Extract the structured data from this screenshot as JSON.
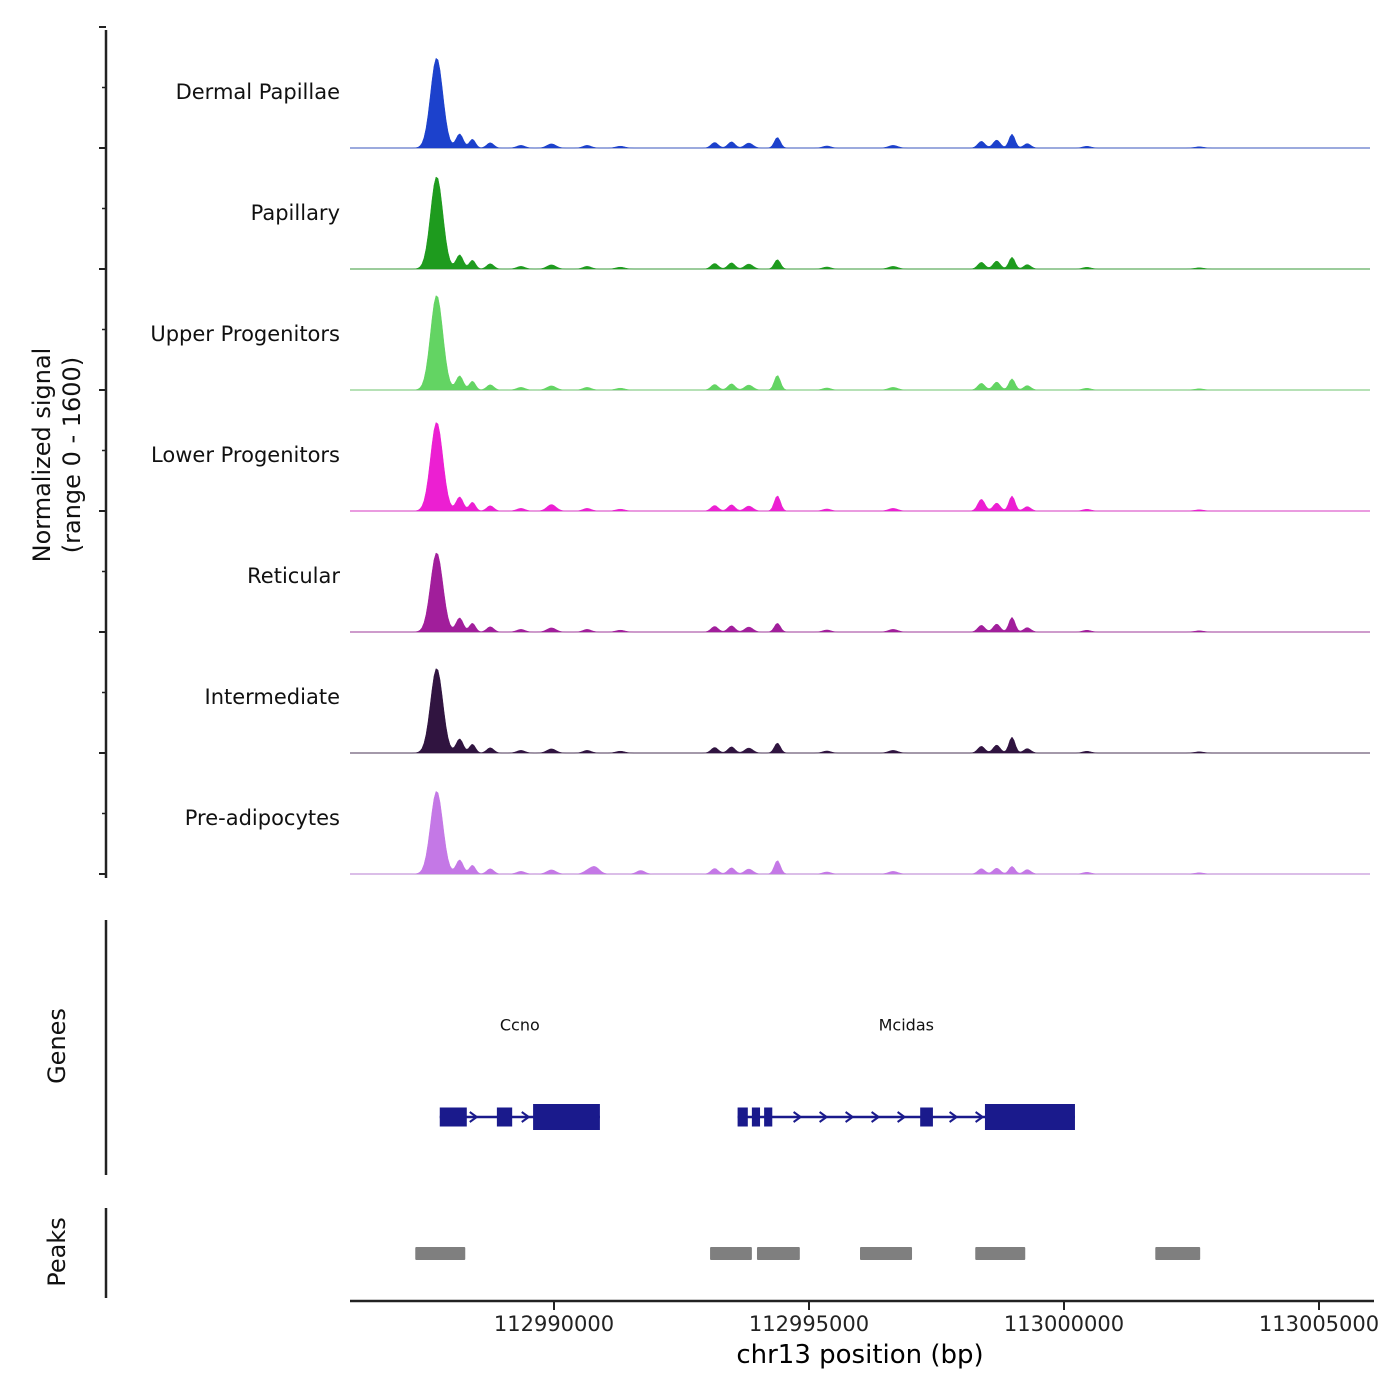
{
  "y_axis": {
    "label_line1": "Normalized signal",
    "label_line2": "(range 0 - 1600)",
    "range": [
      0,
      1600
    ]
  },
  "x_axis": {
    "label": "chr13 position (bp)",
    "chromosome": "chr13",
    "min": 112986000,
    "max": 113006000,
    "ticks": [
      {
        "pos": 112990000,
        "label": "112990000"
      },
      {
        "pos": 112995000,
        "label": "112995000"
      },
      {
        "pos": 113000000,
        "label": "113000000"
      },
      {
        "pos": 113005000,
        "label": "113005000"
      }
    ]
  },
  "sections": {
    "genes": "Genes",
    "peaks": "Peaks"
  },
  "colors": {
    "gene": "#1a1a8c",
    "peak_region": "#7f7f7f",
    "baseline": "#909090",
    "axis": "#222222"
  },
  "chart_data": {
    "type": "area",
    "description": "Genome browser signal tracks, normalized signal range 0-1600, chr13 112986000-113006000 bp. Peaks given as [center_bp, sigma_bp, height].",
    "tracks": [
      {
        "name": "Dermal Papillae",
        "color": "#1c41cc",
        "peaks": [
          [
            112987700,
            120,
            1520
          ],
          [
            112988150,
            70,
            240
          ],
          [
            112988400,
            60,
            150
          ],
          [
            112988750,
            70,
            90
          ],
          [
            112989350,
            80,
            45
          ],
          [
            112989950,
            90,
            70
          ],
          [
            112990650,
            80,
            45
          ],
          [
            112991300,
            90,
            30
          ],
          [
            112993150,
            70,
            95
          ],
          [
            112993480,
            70,
            105
          ],
          [
            112993820,
            80,
            85
          ],
          [
            112994380,
            60,
            180
          ],
          [
            112995350,
            80,
            35
          ],
          [
            112996650,
            90,
            45
          ],
          [
            112998380,
            70,
            115
          ],
          [
            112998680,
            70,
            135
          ],
          [
            112998980,
            60,
            235
          ],
          [
            112999280,
            70,
            75
          ],
          [
            113000450,
            80,
            30
          ],
          [
            113002650,
            90,
            20
          ]
        ]
      },
      {
        "name": "Papillary",
        "color": "#1e9b1e",
        "peaks": [
          [
            112987700,
            120,
            1560
          ],
          [
            112988150,
            70,
            240
          ],
          [
            112988400,
            60,
            150
          ],
          [
            112988750,
            70,
            90
          ],
          [
            112989350,
            80,
            45
          ],
          [
            112989950,
            90,
            70
          ],
          [
            112990650,
            80,
            45
          ],
          [
            112991300,
            90,
            30
          ],
          [
            112993150,
            70,
            95
          ],
          [
            112993480,
            70,
            105
          ],
          [
            112993820,
            80,
            85
          ],
          [
            112994380,
            60,
            160
          ],
          [
            112995350,
            80,
            35
          ],
          [
            112996650,
            90,
            45
          ],
          [
            112998380,
            70,
            115
          ],
          [
            112998680,
            70,
            135
          ],
          [
            112998980,
            60,
            200
          ],
          [
            112999280,
            70,
            75
          ],
          [
            113000450,
            80,
            30
          ],
          [
            113002650,
            90,
            20
          ]
        ]
      },
      {
        "name": "Upper Progenitors",
        "color": "#63d463",
        "peaks": [
          [
            112987700,
            120,
            1600
          ],
          [
            112988150,
            70,
            240
          ],
          [
            112988400,
            60,
            150
          ],
          [
            112988750,
            70,
            90
          ],
          [
            112989350,
            80,
            45
          ],
          [
            112989950,
            90,
            70
          ],
          [
            112990650,
            80,
            45
          ],
          [
            112991300,
            90,
            30
          ],
          [
            112993150,
            70,
            95
          ],
          [
            112993480,
            70,
            105
          ],
          [
            112993820,
            80,
            85
          ],
          [
            112994380,
            60,
            250
          ],
          [
            112995350,
            80,
            35
          ],
          [
            112996650,
            90,
            45
          ],
          [
            112998380,
            70,
            115
          ],
          [
            112998680,
            70,
            135
          ],
          [
            112998980,
            60,
            190
          ],
          [
            112999280,
            70,
            75
          ],
          [
            113000450,
            80,
            30
          ],
          [
            113002650,
            90,
            20
          ]
        ]
      },
      {
        "name": "Lower Progenitors",
        "color": "#ec1fd2",
        "peaks": [
          [
            112987700,
            120,
            1500
          ],
          [
            112988150,
            70,
            240
          ],
          [
            112988400,
            60,
            150
          ],
          [
            112988750,
            70,
            90
          ],
          [
            112989350,
            80,
            45
          ],
          [
            112989950,
            90,
            110
          ],
          [
            112990650,
            80,
            45
          ],
          [
            112991300,
            90,
            30
          ],
          [
            112993150,
            70,
            95
          ],
          [
            112993480,
            70,
            105
          ],
          [
            112993820,
            80,
            85
          ],
          [
            112994380,
            60,
            260
          ],
          [
            112995350,
            80,
            35
          ],
          [
            112996650,
            90,
            45
          ],
          [
            112998380,
            70,
            200
          ],
          [
            112998680,
            70,
            135
          ],
          [
            112998980,
            60,
            255
          ],
          [
            112999280,
            70,
            75
          ],
          [
            113000450,
            80,
            30
          ],
          [
            113002650,
            90,
            20
          ]
        ]
      },
      {
        "name": "Reticular",
        "color": "#a11e9b",
        "peaks": [
          [
            112987700,
            120,
            1340
          ],
          [
            112988150,
            70,
            240
          ],
          [
            112988400,
            60,
            150
          ],
          [
            112988750,
            70,
            90
          ],
          [
            112989350,
            80,
            45
          ],
          [
            112989950,
            90,
            70
          ],
          [
            112990650,
            80,
            45
          ],
          [
            112991300,
            90,
            30
          ],
          [
            112993150,
            70,
            95
          ],
          [
            112993480,
            70,
            105
          ],
          [
            112993820,
            80,
            85
          ],
          [
            112994380,
            60,
            150
          ],
          [
            112995350,
            80,
            35
          ],
          [
            112996650,
            90,
            45
          ],
          [
            112998380,
            70,
            115
          ],
          [
            112998680,
            70,
            135
          ],
          [
            112998980,
            60,
            250
          ],
          [
            112999280,
            70,
            75
          ],
          [
            113000450,
            80,
            30
          ],
          [
            113002650,
            90,
            20
          ]
        ]
      },
      {
        "name": "Intermediate",
        "color": "#301440",
        "peaks": [
          [
            112987700,
            120,
            1430
          ],
          [
            112988150,
            70,
            240
          ],
          [
            112988400,
            60,
            150
          ],
          [
            112988750,
            70,
            90
          ],
          [
            112989350,
            80,
            45
          ],
          [
            112989950,
            90,
            70
          ],
          [
            112990650,
            80,
            45
          ],
          [
            112991300,
            90,
            30
          ],
          [
            112993150,
            70,
            95
          ],
          [
            112993480,
            70,
            105
          ],
          [
            112993820,
            80,
            85
          ],
          [
            112994380,
            60,
            170
          ],
          [
            112995350,
            80,
            35
          ],
          [
            112996650,
            90,
            45
          ],
          [
            112998380,
            70,
            115
          ],
          [
            112998680,
            70,
            135
          ],
          [
            112998980,
            60,
            270
          ],
          [
            112999280,
            70,
            75
          ],
          [
            113000450,
            80,
            30
          ],
          [
            113002650,
            90,
            20
          ]
        ]
      },
      {
        "name": "Pre-adipocytes",
        "color": "#c478e6",
        "peaks": [
          [
            112987700,
            120,
            1400
          ],
          [
            112988150,
            70,
            240
          ],
          [
            112988400,
            60,
            150
          ],
          [
            112988750,
            70,
            90
          ],
          [
            112989350,
            80,
            45
          ],
          [
            112989950,
            90,
            70
          ],
          [
            112990650,
            80,
            45
          ],
          [
            112990800,
            90,
            120
          ],
          [
            112991700,
            80,
            60
          ],
          [
            112993150,
            70,
            95
          ],
          [
            112993480,
            70,
            105
          ],
          [
            112993820,
            80,
            85
          ],
          [
            112994380,
            60,
            230
          ],
          [
            112995350,
            80,
            35
          ],
          [
            112996650,
            90,
            45
          ],
          [
            112998380,
            70,
            90
          ],
          [
            112998680,
            70,
            100
          ],
          [
            112998980,
            60,
            130
          ],
          [
            112999280,
            70,
            75
          ],
          [
            113000450,
            80,
            30
          ],
          [
            113002650,
            90,
            20
          ]
        ]
      }
    ],
    "genes": [
      {
        "name": "Ccno",
        "start": 112987760,
        "end": 112990900,
        "strand": "+",
        "exons": [
          [
            112987760,
            112988290
          ],
          [
            112988880,
            112989180
          ],
          [
            112989590,
            112990900
          ]
        ]
      },
      {
        "name": "Mcidas",
        "start": 112993600,
        "end": 113000215,
        "strand": "+",
        "exons": [
          [
            112993600,
            112993800
          ],
          [
            112993880,
            112994040
          ],
          [
            112994120,
            112994280
          ],
          [
            112997180,
            112997430
          ],
          [
            112998450,
            113000215
          ]
        ]
      }
    ],
    "peak_regions": [
      [
        112987280,
        112988260
      ],
      [
        112993060,
        112993880
      ],
      [
        112993980,
        112994820
      ],
      [
        112996000,
        112997020
      ],
      [
        112998260,
        112999240
      ],
      [
        113001790,
        113002670
      ]
    ]
  }
}
